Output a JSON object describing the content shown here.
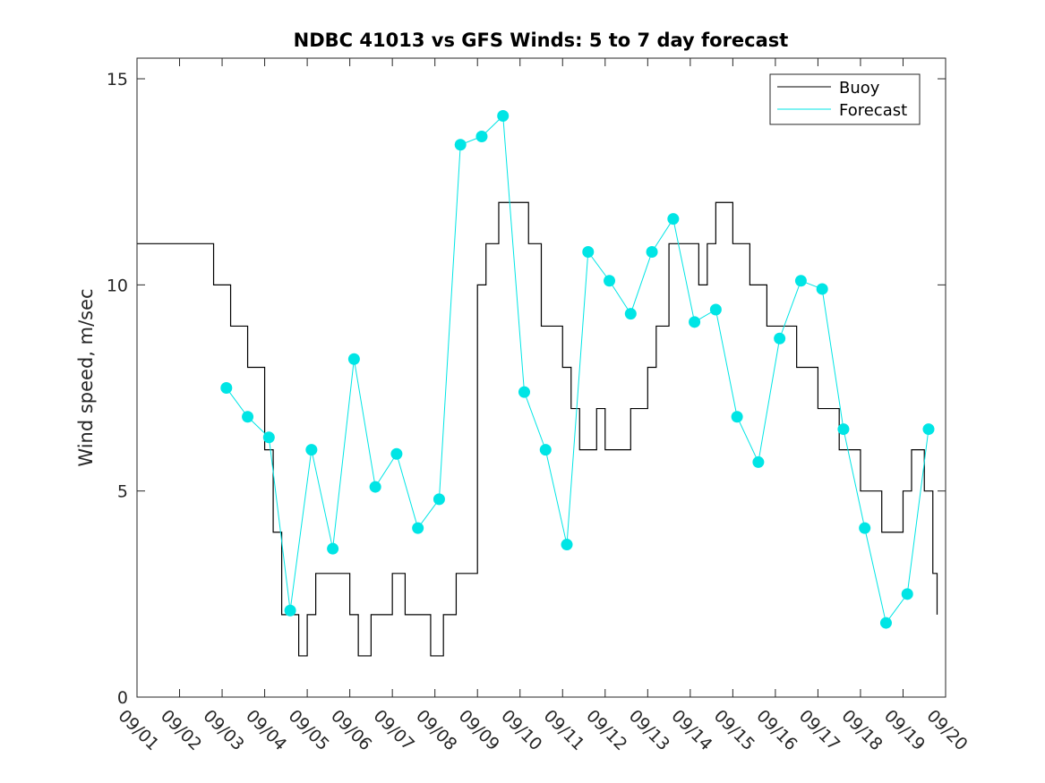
{
  "chart_data": {
    "type": "line",
    "title": "NDBC 41013 vs GFS Winds: 5 to 7 day forecast",
    "xlabel": "",
    "ylabel": "Wind speed, m/sec",
    "xlim": [
      0,
      19
    ],
    "ylim": [
      0,
      15.5
    ],
    "x_ticks": [
      0,
      1,
      2,
      3,
      4,
      5,
      6,
      7,
      8,
      9,
      10,
      11,
      12,
      13,
      14,
      15,
      16,
      17,
      18,
      19
    ],
    "x_tick_labels": [
      "09/01",
      "09/02",
      "09/03",
      "09/04",
      "09/05",
      "09/06",
      "09/07",
      "09/08",
      "09/09",
      "09/10",
      "09/11",
      "09/12",
      "09/13",
      "09/14",
      "09/15",
      "09/16",
      "09/17",
      "09/18",
      "09/19",
      "09/20"
    ],
    "y_ticks": [
      0,
      5,
      10,
      15
    ],
    "y_tick_labels": [
      "0",
      "5",
      "10",
      "15"
    ],
    "legend": [
      {
        "name": "Buoy",
        "color": "#000000"
      },
      {
        "name": "Forecast",
        "color": "#00e5e5"
      }
    ],
    "legend_position": "top-right",
    "colors": {
      "buoy": "#000000",
      "forecast": "#00e5e5",
      "axis": "#262626"
    },
    "series": [
      {
        "name": "Buoy",
        "x": [
          0.0,
          0.5,
          1.0,
          1.5,
          1.8,
          2.0,
          2.2,
          2.4,
          2.6,
          2.9,
          3.0,
          3.2,
          3.4,
          3.6,
          3.8,
          4.0,
          4.2,
          4.5,
          4.8,
          5.0,
          5.2,
          5.5,
          5.8,
          6.0,
          6.3,
          6.6,
          6.9,
          7.2,
          7.5,
          7.8,
          8.0,
          8.2,
          8.5,
          8.8,
          9.0,
          9.2,
          9.5,
          9.8,
          10.0,
          10.2,
          10.4,
          10.6,
          10.8,
          11.0,
          11.3,
          11.6,
          11.8,
          12.0,
          12.2,
          12.5,
          12.8,
          13.0,
          13.2,
          13.4,
          13.6,
          13.8,
          14.0,
          14.2,
          14.4,
          14.6,
          14.8,
          15.0,
          15.2,
          15.5,
          15.8,
          16.0,
          16.2,
          16.5,
          16.8,
          17.0,
          17.2,
          17.5,
          17.8,
          18.0,
          18.2,
          18.5,
          18.7,
          18.8
        ],
        "y": [
          11,
          11,
          11,
          11,
          10,
          10,
          9,
          9,
          8,
          8,
          6,
          4,
          2,
          2,
          1,
          2,
          3,
          3,
          3,
          2,
          1,
          2,
          2,
          3,
          2,
          2,
          1,
          2,
          3,
          3,
          10,
          11,
          12,
          12,
          12,
          11,
          9,
          9,
          8,
          7,
          6,
          6,
          7,
          6,
          6,
          7,
          7,
          8,
          9,
          11,
          11,
          11,
          10,
          11,
          12,
          12,
          11,
          11,
          10,
          10,
          9,
          9,
          9,
          8,
          8,
          7,
          7,
          6,
          6,
          5,
          5,
          4,
          4,
          5,
          6,
          5,
          3,
          2
        ]
      },
      {
        "name": "Forecast",
        "x": [
          2.1,
          2.6,
          3.1,
          3.6,
          4.1,
          4.6,
          5.1,
          5.6,
          6.1,
          6.6,
          7.1,
          7.6,
          8.1,
          8.6,
          9.1,
          9.6,
          10.1,
          10.6,
          11.1,
          11.6,
          12.1,
          12.6,
          13.1,
          13.6,
          14.1,
          14.6,
          15.1,
          15.6,
          16.1,
          16.6,
          17.1,
          17.6,
          18.1,
          18.6
        ],
        "y": [
          7.5,
          6.8,
          6.3,
          2.1,
          6.0,
          3.6,
          8.2,
          5.1,
          5.9,
          4.1,
          4.8,
          13.4,
          13.6,
          14.1,
          7.4,
          6.0,
          3.7,
          10.8,
          10.1,
          9.3,
          10.8,
          11.6,
          9.1,
          9.4,
          6.8,
          5.7,
          8.7,
          10.1,
          9.9,
          6.5,
          4.1,
          1.8,
          2.5,
          6.5
        ]
      }
    ]
  }
}
